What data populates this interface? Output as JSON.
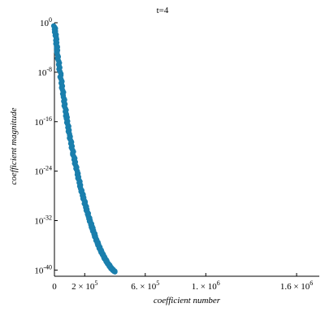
{
  "chart_data": {
    "type": "scatter",
    "title": "t=4",
    "xlabel": "coefficient number",
    "ylabel": "coefficient magnitude",
    "xlim": [
      0,
      1750000
    ],
    "ylog": true,
    "ylim_exponent": [
      -41,
      0
    ],
    "x_ticks": [
      {
        "value": 0,
        "label": "0"
      },
      {
        "value": 200000,
        "label": "2 × 10",
        "exp": "5"
      },
      {
        "value": 600000,
        "label": "6. × 10",
        "exp": "5"
      },
      {
        "value": 1000000,
        "label": "1. × 10",
        "exp": "6"
      },
      {
        "value": 1600000,
        "label": "1.6 × 10",
        "exp": "6"
      }
    ],
    "y_ticks": [
      {
        "exponent": 0,
        "base": "10",
        "exp": "0"
      },
      {
        "exponent": -8,
        "base": "10",
        "exp": "-8"
      },
      {
        "exponent": -16,
        "base": "10",
        "exp": "-16"
      },
      {
        "exponent": -24,
        "base": "10",
        "exp": "-24"
      },
      {
        "exponent": -32,
        "base": "10",
        "exp": "-32"
      },
      {
        "exponent": -40,
        "base": "10",
        "exp": "-40"
      }
    ],
    "series": [
      {
        "color": "#1a7fad",
        "points_x": [
          0,
          10000,
          20000,
          40000,
          60000,
          80000,
          100000,
          125000,
          150000,
          175000,
          200000,
          225000,
          250000,
          275000,
          300000,
          325000,
          350000,
          375000,
          400000
        ],
        "points_log10_y": [
          -0.5,
          -2.5,
          -5,
          -8.5,
          -12,
          -15.3,
          -18.2,
          -21.3,
          -24.2,
          -26.8,
          -29.1,
          -31.3,
          -33.2,
          -35.0,
          -36.5,
          -37.8,
          -38.8,
          -39.7,
          -40.3
        ]
      }
    ],
    "grid": false,
    "legend": "none"
  }
}
